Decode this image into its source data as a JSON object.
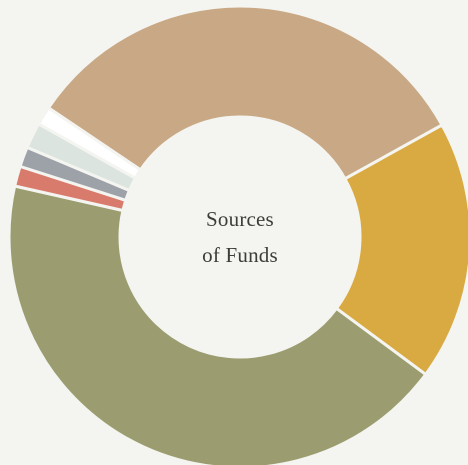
{
  "chart_data": {
    "type": "donut",
    "title_lines": [
      "Sources",
      "of Funds"
    ],
    "legend": "none",
    "slices": [
      {
        "share": 32.5,
        "color": "#c9a985"
      },
      {
        "share": 18.2,
        "color": "#d8aa41"
      },
      {
        "share": 43.4,
        "color": "#9b9d70"
      },
      {
        "share": 1.4,
        "color": "#d97b6c"
      },
      {
        "share": 1.4,
        "color": "#9da1a8"
      },
      {
        "share": 1.8,
        "color": "#dbe4df"
      },
      {
        "share": 1.3,
        "color": "#ffffff"
      }
    ]
  }
}
